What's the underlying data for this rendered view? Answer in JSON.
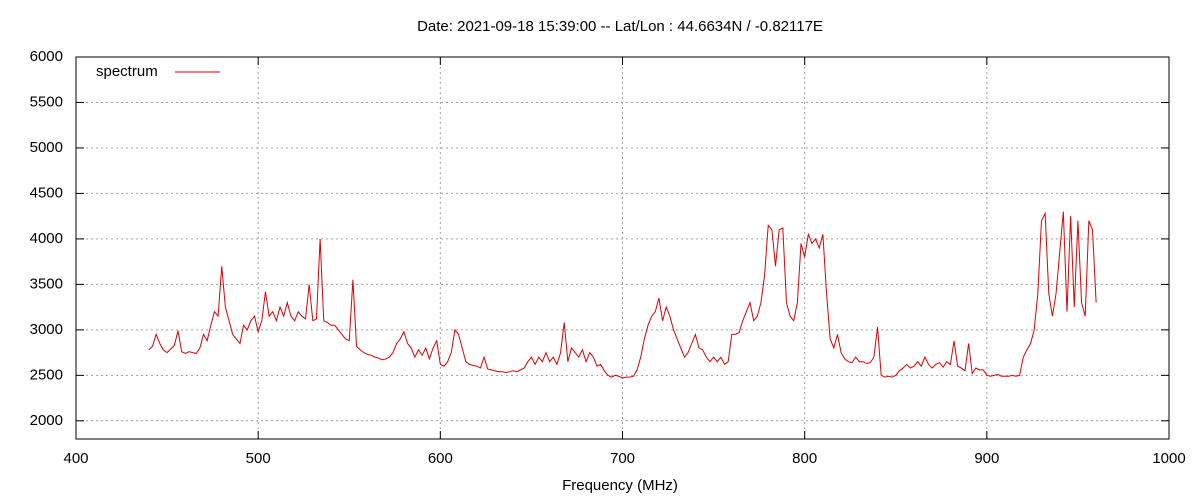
{
  "chart_data": {
    "type": "line",
    "title": "Date: 2021-09-18 15:39:00  --  Lat/Lon : 44.6634N / -0.82117E",
    "xlabel": "Frequency (MHz)",
    "xlim": [
      400,
      1000
    ],
    "xticks": [
      400,
      500,
      600,
      700,
      800,
      900,
      1000
    ],
    "ylim": [
      1800,
      6000
    ],
    "yticks": [
      2000,
      2500,
      3000,
      3500,
      4000,
      4500,
      5000,
      5500,
      6000
    ],
    "grid": true,
    "legend": "top-left",
    "x": [
      440,
      442,
      444,
      446,
      448,
      450,
      452,
      454,
      456,
      458,
      460,
      462,
      464,
      466,
      468,
      470,
      472,
      474,
      476,
      478,
      480,
      482,
      484,
      486,
      488,
      490,
      492,
      494,
      496,
      498,
      500,
      502,
      504,
      506,
      508,
      510,
      512,
      514,
      516,
      518,
      520,
      522,
      524,
      526,
      528,
      530,
      532,
      534,
      536,
      538,
      540,
      542,
      544,
      546,
      548,
      550,
      552,
      554,
      556,
      558,
      560,
      562,
      564,
      566,
      568,
      570,
      572,
      574,
      576,
      578,
      580,
      582,
      584,
      586,
      588,
      590,
      592,
      594,
      596,
      598,
      600,
      602,
      604,
      606,
      608,
      610,
      612,
      614,
      616,
      618,
      620,
      622,
      624,
      626,
      628,
      630,
      632,
      634,
      636,
      638,
      640,
      642,
      644,
      646,
      648,
      650,
      652,
      654,
      656,
      658,
      660,
      662,
      664,
      666,
      668,
      670,
      672,
      674,
      676,
      678,
      680,
      682,
      684,
      686,
      688,
      690,
      692,
      694,
      696,
      698,
      700,
      702,
      704,
      706,
      708,
      710,
      712,
      714,
      716,
      718,
      720,
      722,
      724,
      726,
      728,
      730,
      732,
      734,
      736,
      738,
      740,
      742,
      744,
      746,
      748,
      750,
      752,
      754,
      756,
      758,
      760,
      762,
      764,
      766,
      768,
      770,
      772,
      774,
      776,
      778,
      780,
      782,
      784,
      786,
      788,
      790,
      792,
      794,
      796,
      798,
      800,
      802,
      804,
      806,
      808,
      810,
      812,
      814,
      816,
      818,
      820,
      822,
      824,
      826,
      828,
      830,
      832,
      834,
      836,
      838,
      840,
      842,
      844,
      846,
      848,
      850,
      852,
      854,
      856,
      858,
      860,
      862,
      864,
      866,
      868,
      870,
      872,
      874,
      876,
      878,
      880,
      882,
      884,
      886,
      888,
      890,
      892,
      894,
      896,
      898,
      900,
      902,
      904,
      906,
      908,
      910,
      912,
      914,
      916,
      918,
      920,
      922,
      924,
      926,
      928,
      930,
      932,
      934,
      936,
      938,
      940,
      942,
      944,
      946,
      948,
      950,
      952,
      954,
      956,
      958,
      960
    ],
    "series": [
      {
        "name": "spectrum",
        "color": "#e00000",
        "values": [
          2780,
          2820,
          2950,
          2850,
          2780,
          2750,
          2790,
          2830,
          2990,
          2760,
          2740,
          2760,
          2750,
          2740,
          2800,
          2950,
          2880,
          3050,
          3200,
          3150,
          3700,
          3250,
          3100,
          2950,
          2900,
          2850,
          3050,
          3000,
          3100,
          3150,
          2980,
          3100,
          3420,
          3150,
          3200,
          3100,
          3250,
          3150,
          3300,
          3150,
          3100,
          3200,
          3150,
          3120,
          3500,
          3100,
          3120,
          4000,
          3100,
          3080,
          3050,
          3050,
          3000,
          2950,
          2900,
          2880,
          3550,
          2820,
          2780,
          2750,
          2730,
          2720,
          2700,
          2690,
          2670,
          2680,
          2700,
          2750,
          2850,
          2900,
          2980,
          2850,
          2800,
          2700,
          2780,
          2720,
          2800,
          2680,
          2800,
          2880,
          2620,
          2600,
          2650,
          2750,
          3000,
          2950,
          2800,
          2650,
          2620,
          2610,
          2600,
          2580,
          2700,
          2570,
          2560,
          2550,
          2540,
          2540,
          2530,
          2540,
          2550,
          2540,
          2560,
          2580,
          2650,
          2700,
          2620,
          2700,
          2650,
          2750,
          2650,
          2700,
          2620,
          2750,
          3080,
          2650,
          2800,
          2750,
          2700,
          2780,
          2650,
          2750,
          2700,
          2600,
          2620,
          2550,
          2500,
          2480,
          2500,
          2490,
          2470,
          2480,
          2480,
          2490,
          2560,
          2700,
          2900,
          3050,
          3150,
          3200,
          3350,
          3100,
          3250,
          3150,
          3000,
          2900,
          2800,
          2700,
          2750,
          2850,
          2950,
          2800,
          2780,
          2700,
          2650,
          2700,
          2650,
          2700,
          2620,
          2650,
          2950,
          2950,
          2970,
          3100,
          3200,
          3300,
          3100,
          3150,
          3300,
          3600,
          4150,
          4100,
          3700,
          4100,
          4120,
          3300,
          3150,
          3100,
          3300,
          3950,
          3800,
          4050,
          3950,
          4000,
          3900,
          4050,
          3400,
          2900,
          2800,
          2950,
          2750,
          2680,
          2650,
          2640,
          2700,
          2650,
          2650,
          2630,
          2640,
          2700,
          3030,
          2500,
          2480,
          2490,
          2480,
          2500,
          2550,
          2580,
          2620,
          2580,
          2600,
          2650,
          2600,
          2700,
          2620,
          2580,
          2620,
          2640,
          2590,
          2650,
          2620,
          2880,
          2600,
          2580,
          2550,
          2850,
          2520,
          2580,
          2560,
          2560,
          2500,
          2490,
          2500,
          2510,
          2490,
          2490,
          2490,
          2500,
          2490,
          2500,
          2700,
          2780,
          2850,
          3000,
          3400,
          4200,
          4280,
          3400,
          3150,
          3400,
          3850,
          4300,
          3200,
          4250,
          3250,
          4200,
          3300,
          3150,
          4200,
          4100,
          3300
        ]
      }
    ]
  }
}
